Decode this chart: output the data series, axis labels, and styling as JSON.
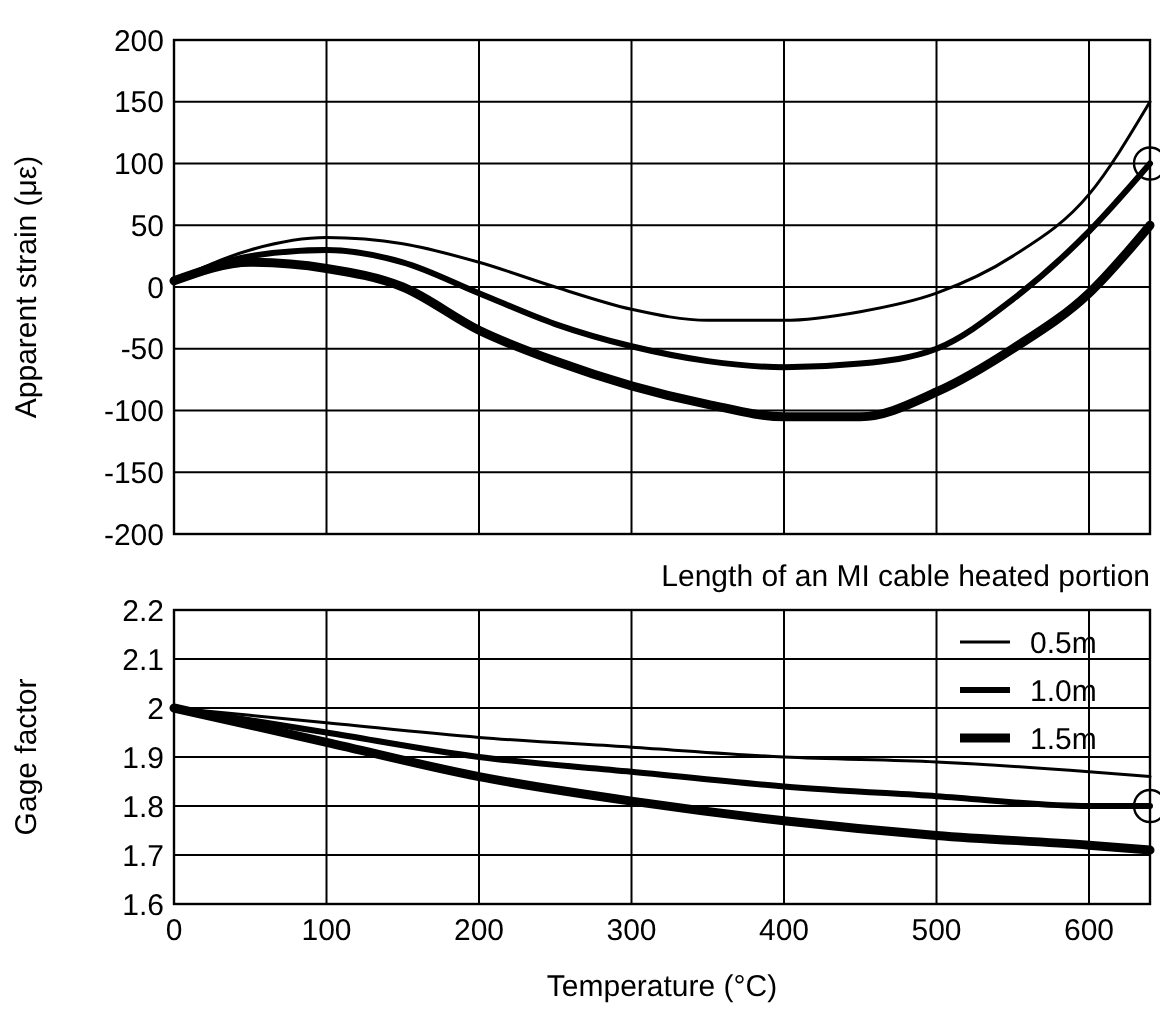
{
  "chart_data": [
    {
      "type": "line",
      "ylabel": "Apparent strain (με)",
      "x": [
        0,
        50,
        100,
        150,
        200,
        250,
        300,
        350,
        400,
        450,
        500,
        550,
        600,
        640
      ],
      "xlim": [
        0,
        640
      ],
      "xticks": [
        0,
        100,
        200,
        300,
        400,
        500,
        600
      ],
      "ylim": [
        -200,
        200
      ],
      "yticks": [
        -200,
        -150,
        -100,
        -50,
        0,
        50,
        100,
        150,
        200
      ],
      "grid": true,
      "tick_labels": "y",
      "series": [
        {
          "color": "#000000",
          "values": [
            5,
            30,
            40,
            35,
            20,
            0,
            -18,
            -27,
            -27,
            -20,
            -5,
            25,
            75,
            150
          ]
        },
        {
          "color": "#000000",
          "values": [
            5,
            25,
            30,
            20,
            -5,
            -30,
            -48,
            -60,
            -65,
            -62,
            -50,
            -10,
            45,
            100
          ]
        },
        {
          "color": "#000000",
          "values": [
            5,
            20,
            15,
            0,
            -35,
            -60,
            -80,
            -95,
            -105,
            -105,
            -85,
            -50,
            -5,
            50
          ]
        }
      ]
    },
    {
      "type": "line",
      "ylabel": "Gage factor",
      "xlabel": "Temperature (°C)",
      "legend_title": "Length of an MI cable heated portion",
      "legend": "top right",
      "x": [
        0,
        100,
        200,
        300,
        400,
        500,
        600,
        640
      ],
      "xlim": [
        0,
        640
      ],
      "xticks": [
        0,
        100,
        200,
        300,
        400,
        500,
        600
      ],
      "ylim": [
        1.6,
        2.2
      ],
      "yticks": [
        1.6,
        1.7,
        1.8,
        1.9,
        {
          "value": 2,
          "label": "2"
        },
        2.1,
        2.2
      ],
      "grid": true,
      "series": [
        {
          "name": "0.5m",
          "color": "#000000",
          "values": [
            2.0,
            1.97,
            1.94,
            1.92,
            1.9,
            1.89,
            1.87,
            1.86
          ]
        },
        {
          "name": "1.0m",
          "color": "#000000",
          "values": [
            2.0,
            1.95,
            1.9,
            1.87,
            1.84,
            1.82,
            1.8,
            1.8
          ]
        },
        {
          "name": "1.5m",
          "color": "#000000",
          "values": [
            2.0,
            1.93,
            1.86,
            1.81,
            1.77,
            1.74,
            1.72,
            1.71
          ]
        }
      ]
    }
  ]
}
